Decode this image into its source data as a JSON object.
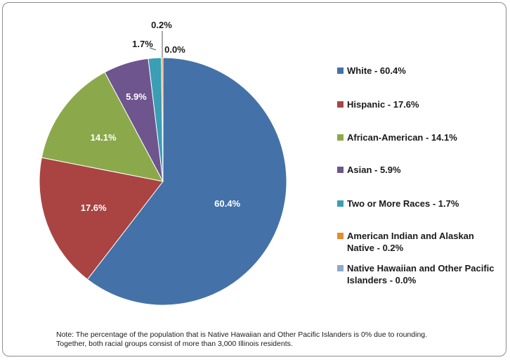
{
  "chart_data": {
    "type": "pie",
    "title": "",
    "slices": [
      {
        "name": "White",
        "value": 60.4,
        "label": "60.4%",
        "legend": "White - 60.4%",
        "color": "#4472A8"
      },
      {
        "name": "Hispanic",
        "value": 17.6,
        "label": "17.6%",
        "legend": "Hispanic - 17.6%",
        "color": "#A94442"
      },
      {
        "name": "African-American",
        "value": 14.1,
        "label": "14.1%",
        "legend": "African-American - 14.1%",
        "color": "#8BA94A"
      },
      {
        "name": "Asian",
        "value": 5.9,
        "label": "5.9%",
        "legend": "Asian - 5.9%",
        "color": "#6E558E"
      },
      {
        "name": "Two or More Races",
        "value": 1.7,
        "label": "1.7%",
        "legend": "Two or More Races - 1.7%",
        "color": "#3A9EB5"
      },
      {
        "name": "American Indian and Alaskan Native",
        "value": 0.2,
        "label": "0.2%",
        "legend": "American Indian and Alaskan Native - 0.2%",
        "color": "#E88B30"
      },
      {
        "name": "Native Hawaiian and Other Pacific Islanders",
        "value": 0.0,
        "label": "0.0%",
        "legend": "Native Hawaiian and Other Pacific Islanders - 0.0%",
        "color": "#8FA8CC"
      }
    ],
    "legend_position": "right"
  },
  "note": {
    "line1": "Note: The percentage of the population that is Native Hawaiian and Other Pacific Islanders is 0% due to rounding.",
    "line2": "Together, both racial groups consist of more than 3,000 Illinois residents."
  }
}
